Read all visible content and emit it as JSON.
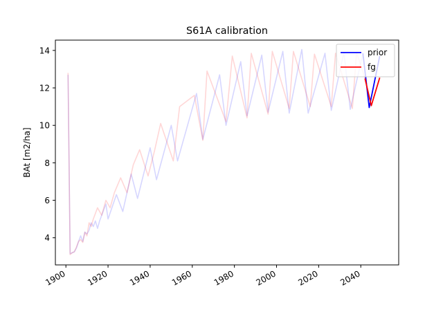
{
  "chart_data": {
    "type": "line",
    "title": "S61A calibration",
    "xlabel": "",
    "ylabel": "BAt [m2/ha]",
    "xlim": [
      1895,
      2058
    ],
    "ylim": [
      2.55,
      14.55
    ],
    "x_ticks": [
      1900,
      1920,
      1940,
      1960,
      1980,
      2000,
      2020,
      2040
    ],
    "y_ticks": [
      4,
      6,
      8,
      10,
      12,
      14
    ],
    "grid": false,
    "legend": {
      "placement": "top-right",
      "entries": [
        "prior",
        "fg"
      ]
    },
    "series": [
      {
        "name": "prior",
        "color": "#0000ff",
        "faded_x": [
          1901,
          1902,
          1903,
          1904,
          1905,
          1906,
          1907,
          1908,
          1909,
          1910,
          1911,
          1912,
          1913,
          1914,
          1915,
          1916,
          1919,
          1920,
          1924,
          1927,
          1931,
          1934,
          1940,
          1943,
          1950,
          1953,
          1962,
          1965,
          1973,
          1976,
          1983,
          1986,
          1993,
          1996,
          2003,
          2006,
          2012,
          2015,
          2023,
          2026,
          2032,
          2035,
          2041
        ],
        "faded_y": [
          12.7,
          3.15,
          3.2,
          3.25,
          3.45,
          3.8,
          4.1,
          3.8,
          4.3,
          4.2,
          4.4,
          4.8,
          4.6,
          4.9,
          4.5,
          4.9,
          5.8,
          5.0,
          6.3,
          5.4,
          7.4,
          6.1,
          8.8,
          7.1,
          10.0,
          8.1,
          11.7,
          9.25,
          12.7,
          10.0,
          13.4,
          10.5,
          13.75,
          10.7,
          13.95,
          10.65,
          14.05,
          10.65,
          13.85,
          10.8,
          13.9,
          10.85,
          13.85
        ],
        "solid_x": [
          2041,
          2044,
          2049
        ],
        "solid_y": [
          13.85,
          10.95,
          13.7
        ]
      },
      {
        "name": "fg",
        "color": "#ff0000",
        "faded_x": [
          1901,
          1902,
          1903,
          1904,
          1905,
          1906,
          1907,
          1908,
          1909,
          1910,
          1911,
          1912,
          1913,
          1915,
          1917,
          1919,
          1921,
          1923,
          1926,
          1929,
          1932,
          1935,
          1939,
          1942,
          1945,
          1951,
          1954,
          1961,
          1965,
          1967,
          1976,
          1979,
          1986,
          1988,
          1996,
          1998,
          2006,
          2008,
          2016,
          2018,
          2026,
          2028,
          2036,
          2038,
          2042
        ],
        "faded_y": [
          12.8,
          3.1,
          3.2,
          3.25,
          3.5,
          3.8,
          3.9,
          3.75,
          4.3,
          4.1,
          4.8,
          4.6,
          5.0,
          5.6,
          5.2,
          6.0,
          5.6,
          6.4,
          7.2,
          6.4,
          7.9,
          8.7,
          7.3,
          8.6,
          10.1,
          8.1,
          11.0,
          11.6,
          9.2,
          12.9,
          10.2,
          13.7,
          10.4,
          13.85,
          10.6,
          13.95,
          10.9,
          13.95,
          11.0,
          13.8,
          11.0,
          13.85,
          10.9,
          13.9,
          12.5
        ],
        "solid_x": [
          2042,
          2045,
          2049
        ],
        "solid_y": [
          12.5,
          11.05,
          12.55
        ]
      }
    ]
  }
}
